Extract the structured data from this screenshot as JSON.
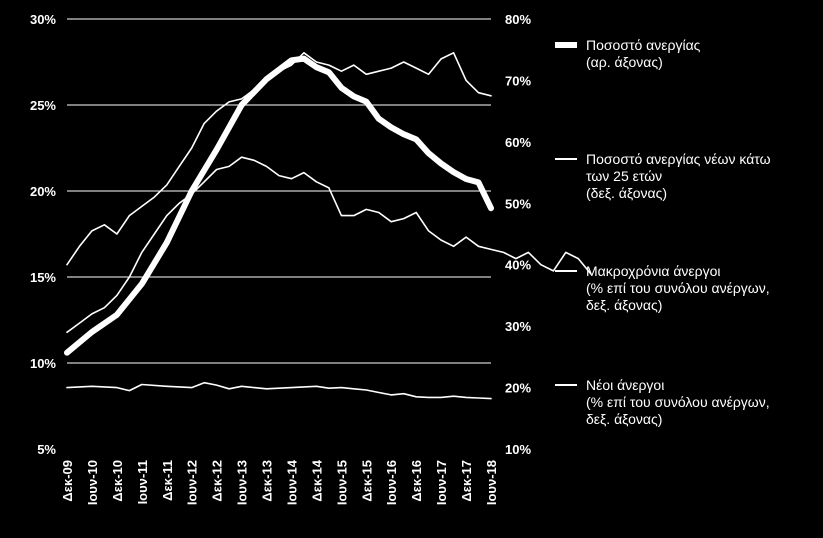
{
  "chart_data": {
    "type": "line",
    "x_tick_labels": [
      "Δεκ-09",
      "Ιουν-10",
      "Δεκ-10",
      "Ιουν-11",
      "Δεκ-11",
      "Ιουν-12",
      "Δεκ-12",
      "Ιουν-13",
      "Δεκ-13",
      "Ιουν-14",
      "Δεκ-14",
      "Ιουν-15",
      "Δεκ-15",
      "Ιουν-16",
      "Δεκ-16",
      "Ιουν-17",
      "Δεκ-17",
      "Ιουν-18"
    ],
    "y_left": {
      "ticks": [
        "5%",
        "10%",
        "15%",
        "20%",
        "25%",
        "30%"
      ],
      "range": [
        5,
        30
      ]
    },
    "y_right": {
      "ticks": [
        "10%",
        "20%",
        "30%",
        "40%",
        "50%",
        "60%",
        "70%",
        "80%"
      ],
      "range": [
        10,
        80
      ]
    },
    "grid": "horizontal",
    "legend_position": "right",
    "series": [
      {
        "name": "Ποσοστό ανεργίας\n(αρ. άξονας)",
        "axis": "left",
        "style": "thick",
        "points": [
          [
            0,
            10.6
          ],
          [
            1,
            11.8
          ],
          [
            2,
            12.8
          ],
          [
            3,
            14.6
          ],
          [
            4,
            17.0
          ],
          [
            5,
            20.0
          ],
          [
            6,
            22.4
          ],
          [
            7,
            25.0
          ],
          [
            8,
            26.5
          ],
          [
            9,
            27.6
          ],
          [
            9.5,
            27.7
          ],
          [
            10,
            27.2
          ],
          [
            10.5,
            26.9
          ],
          [
            11,
            26.0
          ],
          [
            11.5,
            25.5
          ],
          [
            12,
            25.2
          ],
          [
            12.5,
            24.2
          ],
          [
            13,
            23.7
          ],
          [
            13.5,
            23.3
          ],
          [
            14,
            23.0
          ],
          [
            14.5,
            22.2
          ],
          [
            15,
            21.6
          ],
          [
            15.5,
            21.1
          ],
          [
            16,
            20.7
          ],
          [
            16.5,
            20.5
          ],
          [
            17,
            19.0
          ]
        ]
      },
      {
        "name": "Ποσοστό ανεργίας νέων κάτω\nτων 25 ετών\n(δεξ. άξονας)",
        "axis": "right",
        "style": "thin",
        "points": [
          [
            0,
            40
          ],
          [
            0.5,
            43
          ],
          [
            1,
            45.5
          ],
          [
            1.5,
            46.5
          ],
          [
            2,
            45
          ],
          [
            2.5,
            48
          ],
          [
            3,
            49.5
          ],
          [
            3.5,
            51
          ],
          [
            4,
            53
          ],
          [
            4.5,
            56
          ],
          [
            5,
            59
          ],
          [
            5.5,
            63
          ],
          [
            6,
            65
          ],
          [
            6.5,
            66.5
          ],
          [
            7,
            67
          ],
          [
            7.5,
            68.5
          ],
          [
            8,
            70
          ],
          [
            8.5,
            71.5
          ],
          [
            9,
            72.5
          ],
          [
            9.5,
            74.5
          ],
          [
            10,
            73
          ],
          [
            10.5,
            72.5
          ],
          [
            11,
            71.5
          ],
          [
            11.5,
            72.5
          ],
          [
            12,
            71
          ],
          [
            12.5,
            71.5
          ],
          [
            13,
            72
          ],
          [
            13.5,
            73
          ],
          [
            14,
            72
          ],
          [
            14.5,
            71
          ],
          [
            15,
            73.5
          ],
          [
            15.5,
            74.5
          ],
          [
            16,
            70
          ],
          [
            16.5,
            68
          ],
          [
            17,
            67.5
          ]
        ]
      },
      {
        "name": "Μακροχρόνια άνεργοι\n(% επί του συνόλου ανέργων,\nδεξ. άξονας)",
        "axis": "right",
        "style": "thin",
        "points": [
          [
            0,
            29
          ],
          [
            0.5,
            30.5
          ],
          [
            1,
            32
          ],
          [
            1.5,
            33
          ],
          [
            2,
            35
          ],
          [
            2.5,
            38
          ],
          [
            3,
            42
          ],
          [
            3.5,
            45
          ],
          [
            4,
            48
          ],
          [
            4.5,
            50
          ],
          [
            5,
            51.5
          ],
          [
            5.5,
            53.5
          ],
          [
            6,
            55.5
          ],
          [
            6.5,
            56
          ],
          [
            7,
            57.5
          ],
          [
            7.5,
            57
          ],
          [
            8,
            56
          ],
          [
            8.5,
            54.5
          ],
          [
            9,
            54
          ],
          [
            9.5,
            55
          ],
          [
            10,
            53.5
          ],
          [
            10.5,
            52.5
          ],
          [
            11,
            48
          ],
          [
            11.5,
            48
          ],
          [
            12,
            49
          ],
          [
            12.5,
            48.5
          ],
          [
            13,
            47
          ],
          [
            13.5,
            47.5
          ],
          [
            14,
            48.5
          ],
          [
            14.5,
            45.5
          ],
          [
            15,
            44
          ],
          [
            15.5,
            43
          ],
          [
            16,
            44.5
          ],
          [
            16.5,
            43
          ],
          [
            17,
            42.5
          ],
          [
            17.5,
            42
          ],
          [
            18,
            41
          ],
          [
            18.5,
            42
          ],
          [
            19,
            40
          ],
          [
            19.5,
            39
          ],
          [
            20,
            42
          ],
          [
            20.5,
            41
          ],
          [
            21,
            38.5
          ]
        ]
      },
      {
        "name": "Νέοι άνεργοι\n(% επί του συνόλου ανέργων,\nδεξ. άξονας)",
        "axis": "right",
        "style": "thin",
        "points": [
          [
            0,
            20
          ],
          [
            1,
            20.2
          ],
          [
            2,
            20
          ],
          [
            2.5,
            19.5
          ],
          [
            3,
            20.5
          ],
          [
            4,
            20.2
          ],
          [
            5,
            20
          ],
          [
            5.5,
            20.8
          ],
          [
            6,
            20.4
          ],
          [
            6.5,
            19.8
          ],
          [
            7,
            20.2
          ],
          [
            8,
            19.8
          ],
          [
            9,
            20
          ],
          [
            10,
            20.2
          ],
          [
            10.5,
            19.9
          ],
          [
            11,
            20
          ],
          [
            11.5,
            19.8
          ],
          [
            12,
            19.6
          ],
          [
            12.5,
            19.2
          ],
          [
            13,
            18.8
          ],
          [
            13.5,
            19
          ],
          [
            14,
            18.5
          ],
          [
            14.5,
            18.4
          ],
          [
            15,
            18.4
          ],
          [
            15.5,
            18.6
          ],
          [
            16,
            18.4
          ],
          [
            16.5,
            18.3
          ],
          [
            17,
            18.2
          ]
        ]
      }
    ]
  }
}
